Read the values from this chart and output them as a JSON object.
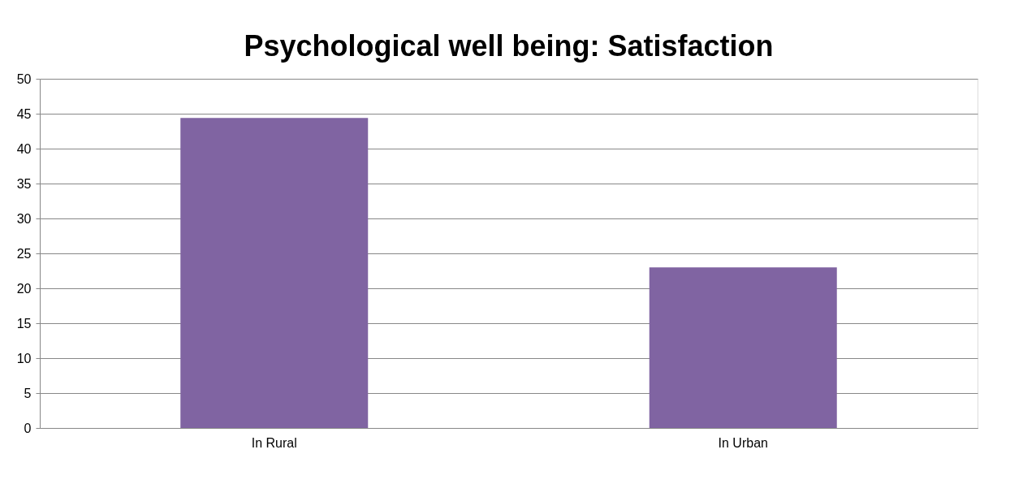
{
  "chart_data": {
    "type": "bar",
    "title": "Psychological well being: Satisfaction",
    "categories": [
      "In Rural",
      "In Urban"
    ],
    "values": [
      44.4,
      23.0
    ],
    "color": "#8064a2",
    "ylim": [
      0,
      50
    ],
    "yticks": [
      0,
      5,
      10,
      15,
      20,
      25,
      30,
      35,
      40,
      45,
      50
    ],
    "grid": "y"
  }
}
